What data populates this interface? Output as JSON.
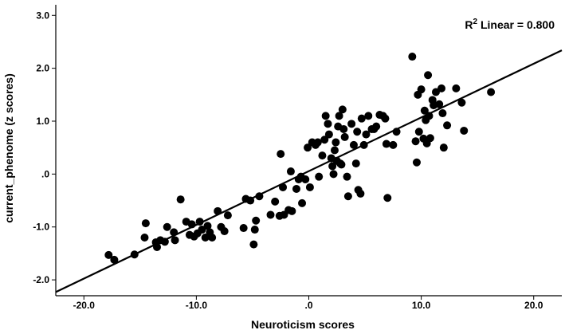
{
  "chart_data": {
    "type": "scatter",
    "xlabel": "Neuroticism scores",
    "ylabel": "current_phenome (z scores)",
    "xlim": [
      -22.5,
      22.5
    ],
    "ylim": [
      -2.3,
      3.2
    ],
    "x_ticks": [
      -20,
      -10,
      0,
      10,
      20
    ],
    "x_tick_labels": [
      "-20.0",
      "-10.0",
      ".0",
      "10.0",
      "20.0"
    ],
    "y_ticks": [
      -2,
      -1,
      0,
      1,
      2,
      3
    ],
    "y_tick_labels": [
      "-2.0",
      "-1.0",
      ".0",
      "1.0",
      "2.0",
      "3.0"
    ],
    "grid": false,
    "annotation": {
      "r_letter": "R",
      "superscript": "2",
      "text": " Linear = 0.800"
    },
    "fit_line": {
      "x": [
        -22.5,
        22.5
      ],
      "y": [
        -2.23,
        2.34
      ]
    },
    "points": [
      [
        -17.8,
        -1.53
      ],
      [
        -17.3,
        -1.62
      ],
      [
        -15.5,
        -1.52
      ],
      [
        -14.6,
        -1.2
      ],
      [
        -14.5,
        -0.93
      ],
      [
        -13.6,
        -1.29
      ],
      [
        -13.5,
        -1.38
      ],
      [
        -13.2,
        -1.25
      ],
      [
        -12.8,
        -1.28
      ],
      [
        -12.6,
        -1.0
      ],
      [
        -12.0,
        -1.1
      ],
      [
        -11.9,
        -1.25
      ],
      [
        -11.4,
        -0.48
      ],
      [
        -10.9,
        -0.9
      ],
      [
        -10.6,
        -1.15
      ],
      [
        -10.4,
        -0.95
      ],
      [
        -10.2,
        -1.18
      ],
      [
        -9.9,
        -1.12
      ],
      [
        -9.7,
        -0.9
      ],
      [
        -9.5,
        -1.05
      ],
      [
        -9.2,
        -1.2
      ],
      [
        -9.0,
        -0.98
      ],
      [
        -8.8,
        -1.1
      ],
      [
        -8.6,
        -1.2
      ],
      [
        -8.1,
        -0.7
      ],
      [
        -7.8,
        -1.0
      ],
      [
        -7.5,
        -1.08
      ],
      [
        -7.2,
        -0.78
      ],
      [
        -5.8,
        -1.02
      ],
      [
        -5.6,
        -0.47
      ],
      [
        -5.2,
        -0.5
      ],
      [
        -4.9,
        -1.33
      ],
      [
        -4.8,
        -1.05
      ],
      [
        -4.7,
        -0.88
      ],
      [
        -4.4,
        -0.42
      ],
      [
        -3.4,
        -0.77
      ],
      [
        -3.0,
        -0.52
      ],
      [
        -2.6,
        -0.79
      ],
      [
        -2.5,
        0.38
      ],
      [
        -2.3,
        -0.25
      ],
      [
        -2.2,
        -0.77
      ],
      [
        -1.8,
        -0.68
      ],
      [
        -1.5,
        -0.7
      ],
      [
        -1.6,
        0.05
      ],
      [
        -1.1,
        -0.28
      ],
      [
        -0.9,
        -0.1
      ],
      [
        -0.7,
        -0.05
      ],
      [
        -0.6,
        -0.55
      ],
      [
        -0.3,
        -0.1
      ],
      [
        -0.1,
        0.5
      ],
      [
        0.1,
        -0.25
      ],
      [
        0.3,
        0.6
      ],
      [
        0.6,
        0.55
      ],
      [
        0.8,
        0.6
      ],
      [
        0.9,
        -0.05
      ],
      [
        1.2,
        0.35
      ],
      [
        1.4,
        0.65
      ],
      [
        1.5,
        1.1
      ],
      [
        1.7,
        0.95
      ],
      [
        1.8,
        0.75
      ],
      [
        2.0,
        0.3
      ],
      [
        2.1,
        0.15
      ],
      [
        2.2,
        0.0
      ],
      [
        2.3,
        0.45
      ],
      [
        2.4,
        0.6
      ],
      [
        2.5,
        0.25
      ],
      [
        2.6,
        0.9
      ],
      [
        2.7,
        1.1
      ],
      [
        2.8,
        0.2
      ],
      [
        2.9,
        0.18
      ],
      [
        3.0,
        1.22
      ],
      [
        3.1,
        0.85
      ],
      [
        3.2,
        0.7
      ],
      [
        3.4,
        -0.05
      ],
      [
        3.5,
        -0.42
      ],
      [
        3.8,
        0.95
      ],
      [
        4.0,
        0.55
      ],
      [
        4.2,
        0.2
      ],
      [
        4.3,
        0.8
      ],
      [
        4.4,
        -0.3
      ],
      [
        4.6,
        -0.37
      ],
      [
        4.7,
        1.05
      ],
      [
        4.9,
        0.55
      ],
      [
        5.1,
        0.75
      ],
      [
        5.3,
        1.1
      ],
      [
        5.6,
        0.85
      ],
      [
        5.8,
        0.85
      ],
      [
        6.0,
        0.9
      ],
      [
        6.3,
        1.12
      ],
      [
        6.6,
        1.1
      ],
      [
        6.8,
        1.05
      ],
      [
        6.9,
        0.57
      ],
      [
        7.0,
        -0.45
      ],
      [
        7.5,
        0.55
      ],
      [
        7.8,
        0.8
      ],
      [
        9.2,
        2.22
      ],
      [
        9.5,
        0.62
      ],
      [
        9.6,
        0.22
      ],
      [
        9.7,
        1.5
      ],
      [
        9.8,
        0.8
      ],
      [
        10.0,
        1.6
      ],
      [
        10.2,
        0.67
      ],
      [
        10.3,
        1.2
      ],
      [
        10.4,
        1.02
      ],
      [
        10.5,
        0.58
      ],
      [
        10.6,
        1.87
      ],
      [
        10.7,
        1.1
      ],
      [
        10.8,
        0.68
      ],
      [
        11.0,
        1.4
      ],
      [
        11.1,
        1.3
      ],
      [
        11.3,
        1.55
      ],
      [
        11.6,
        1.32
      ],
      [
        11.8,
        1.62
      ],
      [
        11.9,
        1.15
      ],
      [
        12.0,
        0.5
      ],
      [
        12.3,
        0.92
      ],
      [
        13.1,
        1.62
      ],
      [
        13.6,
        1.35
      ],
      [
        13.8,
        0.82
      ],
      [
        16.2,
        1.55
      ]
    ]
  }
}
